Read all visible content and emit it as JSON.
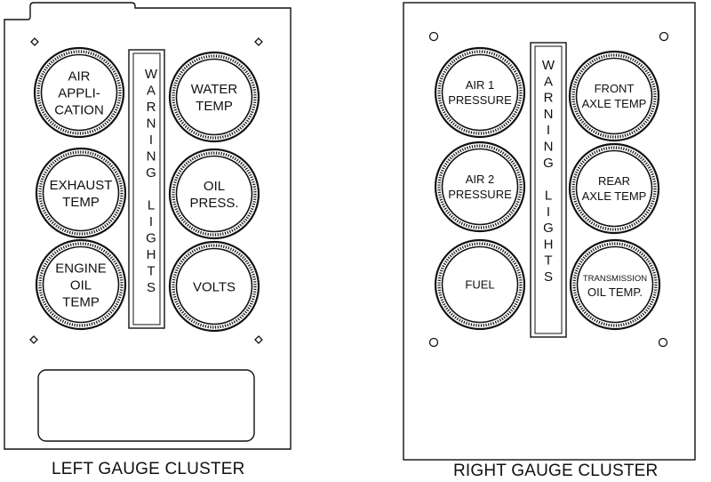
{
  "left_cluster": {
    "caption": "LEFT GAUGE CLUSTER",
    "warning_label": "WARNING LIGHTS",
    "gauges": [
      {
        "lines": [
          "AIR",
          "APPLI-",
          "CATION"
        ]
      },
      {
        "lines": [
          "EXHAUST",
          "TEMP"
        ]
      },
      {
        "lines": [
          "ENGINE",
          "OIL",
          "TEMP"
        ]
      },
      {
        "lines": [
          "WATER",
          "TEMP"
        ]
      },
      {
        "lines": [
          "OIL",
          "PRESS."
        ]
      },
      {
        "lines": [
          "VOLTS"
        ]
      }
    ]
  },
  "right_cluster": {
    "caption": "RIGHT GAUGE CLUSTER",
    "warning_label": "WARNING LIGHTS",
    "gauges": [
      {
        "lines": [
          "AIR 1",
          "PRESSURE"
        ]
      },
      {
        "lines": [
          "AIR 2",
          "PRESSURE"
        ]
      },
      {
        "lines": [
          "FUEL"
        ]
      },
      {
        "lines": [
          "FRONT",
          "AXLE TEMP"
        ]
      },
      {
        "lines": [
          "REAR",
          "AXLE TEMP"
        ]
      },
      {
        "lines": [
          "TRANSMISSION",
          "OIL TEMP."
        ]
      }
    ]
  }
}
